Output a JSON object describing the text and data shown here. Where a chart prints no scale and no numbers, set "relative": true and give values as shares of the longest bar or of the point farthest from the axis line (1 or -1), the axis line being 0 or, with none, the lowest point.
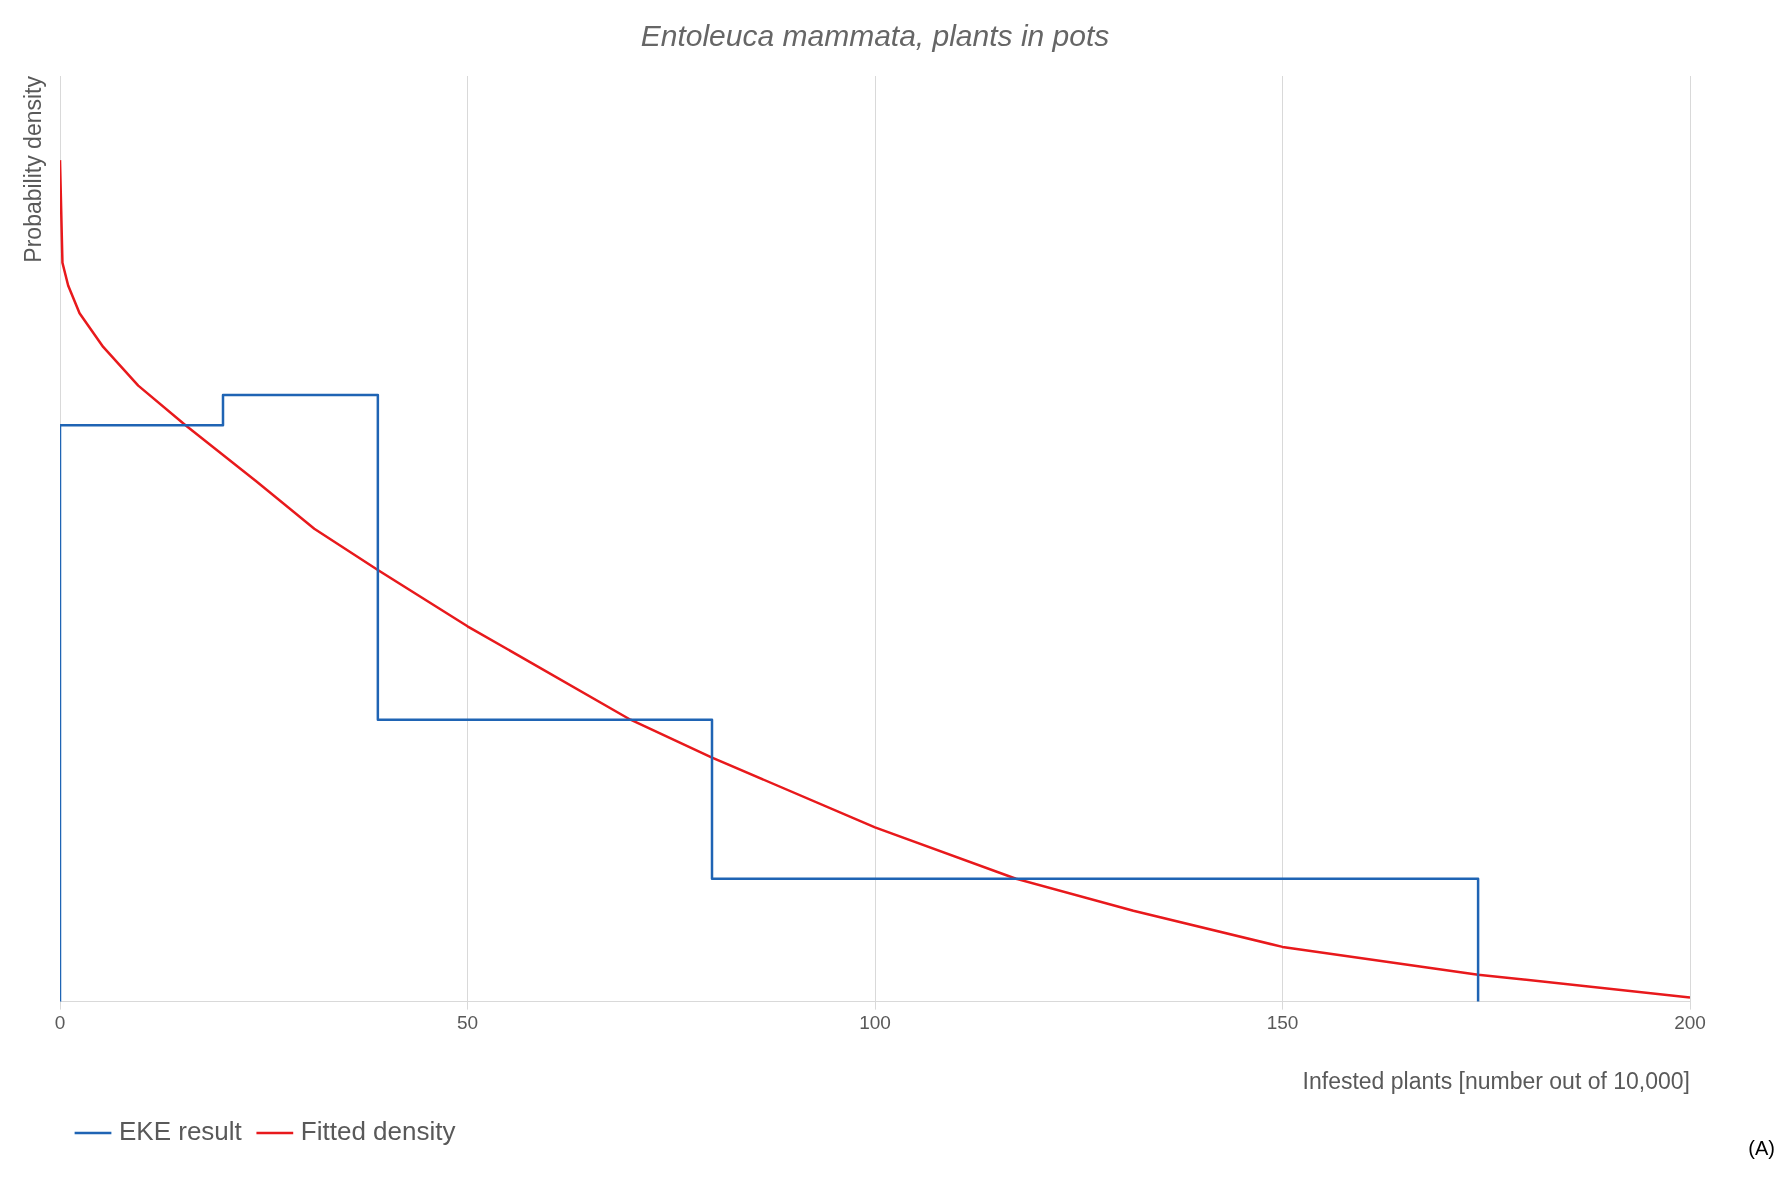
{
  "chart_data": {
    "type": "line",
    "title": "Entoleuca mammata, plants in pots",
    "xlabel": "Infested plants [number out of 10,000]",
    "ylabel": "Probability density",
    "relative": true,
    "xlim": [
      0,
      200
    ],
    "xticks": [
      0,
      50,
      100,
      150,
      200
    ],
    "grid": "x",
    "legend": "bottom left",
    "annotations": [
      "(A)"
    ],
    "series": [
      {
        "name": "EKE result",
        "type": "step",
        "color": "#1f64b4",
        "x": [
          0,
          0,
          20,
          39,
          80,
          174,
          174
        ],
        "values": [
          0,
          0.685,
          0.721,
          0.335,
          0.146,
          0.146,
          0
        ]
      },
      {
        "name": "Fitted density",
        "color": "#e8191c",
        "x": [
          0,
          0.3,
          1,
          2.4,
          5.3,
          9.6,
          15.4,
          24,
          31.2,
          39,
          50,
          70,
          80,
          100,
          117.3,
          131.7,
          150,
          174,
          200
        ],
        "values": [
          1.0,
          0.878,
          0.851,
          0.818,
          0.778,
          0.732,
          0.685,
          0.619,
          0.562,
          0.513,
          0.446,
          0.335,
          0.29,
          0.207,
          0.146,
          0.108,
          0.065,
          0.032,
          0.005
        ]
      }
    ]
  }
}
